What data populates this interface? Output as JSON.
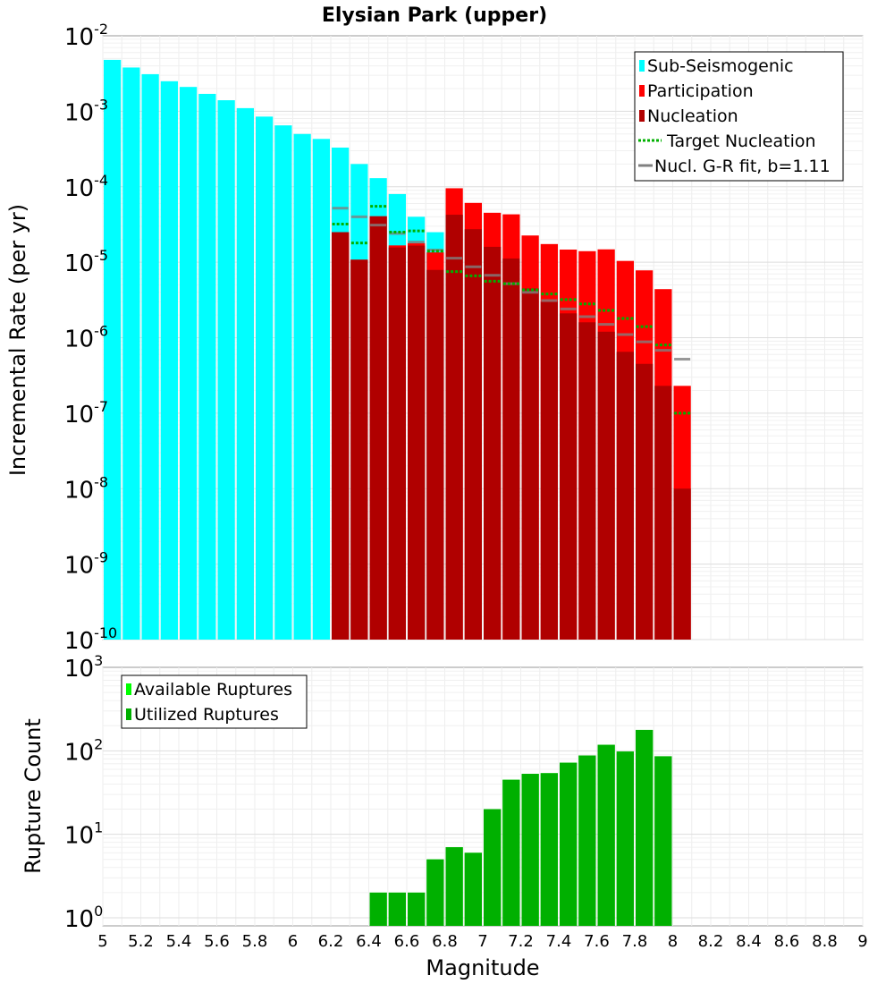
{
  "chart_data": [
    {
      "type": "bar",
      "title": "Elysian Park (upper)",
      "ylabel": "Incremental Rate (per yr)",
      "xlabel": "",
      "y_scale": "log",
      "xlim": [
        5,
        9
      ],
      "ylim": [
        1e-10,
        0.01
      ],
      "bin_width": 0.1,
      "y_tick_exponents": [
        "-2",
        "-3",
        "-4",
        "-5",
        "-6",
        "-7",
        "-8",
        "-9",
        "-10"
      ],
      "y_tick_base": "10",
      "legend": {
        "position": "top-right",
        "entries": [
          "Sub-Seismogenic",
          "Participation",
          "Nucleation",
          "Target Nucleation",
          "Nucl. G-R fit, b=1.11"
        ]
      },
      "colors": {
        "sub_seismogenic": "#00ffff",
        "participation": "#ff0000",
        "nucleation": "#b00000",
        "target_nucleation": "#00b000",
        "gr_fit": "#808080"
      },
      "series": [
        {
          "name": "Sub-Seismogenic",
          "x": [
            5.05,
            5.15,
            5.25,
            5.35,
            5.45,
            5.55,
            5.65,
            5.75,
            5.85,
            5.95,
            6.05,
            6.15,
            6.25,
            6.35,
            6.45,
            6.55,
            6.65,
            6.75
          ],
          "values": [
            0.0048,
            0.0038,
            0.0031,
            0.0025,
            0.0021,
            0.0017,
            0.0014,
            0.0011,
            0.00085,
            0.00065,
            0.0005,
            0.00043,
            0.00033,
            0.0002,
            0.00013,
            8e-05,
            4e-05,
            2.5e-05
          ]
        },
        {
          "name": "Participation",
          "x": [
            6.25,
            6.35,
            6.45,
            6.55,
            6.65,
            6.75,
            6.85,
            6.95,
            7.05,
            7.15,
            7.25,
            7.35,
            7.45,
            7.55,
            7.65,
            7.75,
            7.85,
            7.95,
            8.05
          ],
          "values": [
            2.5e-05,
            1.08e-05,
            4.06e-05,
            1.67e-05,
            1.79e-05,
            1.35e-05,
            9.55e-05,
            6.11e-05,
            4.52e-05,
            4.31e-05,
            2.26e-05,
            1.74e-05,
            1.47e-05,
            1.4e-05,
            1.48e-05,
            1.04e-05,
            7.8e-06,
            4.4e-06,
            2.3e-07
          ]
        },
        {
          "name": "Nucleation",
          "x": [
            6.25,
            6.35,
            6.45,
            6.55,
            6.65,
            6.75,
            6.85,
            6.95,
            7.05,
            7.15,
            7.25,
            7.35,
            7.45,
            7.55,
            7.65,
            7.75,
            7.85,
            7.95,
            8.05
          ],
          "values": [
            2.5e-05,
            1.08e-05,
            4.06e-05,
            1.57e-05,
            1.66e-05,
            7.9e-06,
            4.26e-05,
            2.74e-05,
            1.6e-05,
            1.12e-05,
            4.5e-06,
            3e-06,
            2.1e-06,
            1.6e-06,
            1.2e-06,
            6.5e-07,
            4.5e-07,
            2.3e-07,
            1e-08
          ]
        },
        {
          "name": "Target Nucleation",
          "x": [
            6.25,
            6.35,
            6.45,
            6.55,
            6.65,
            6.75,
            6.85,
            6.95,
            7.05,
            7.15,
            7.25,
            7.35,
            7.45,
            7.55,
            7.65,
            7.75,
            7.85,
            7.95,
            8.05
          ],
          "values": [
            3.2e-05,
            1.8e-05,
            5.5e-05,
            2.5e-05,
            2.6e-05,
            1.4e-05,
            7.5e-06,
            6.6e-06,
            5.6e-06,
            5.2e-06,
            4.3e-06,
            3.8e-06,
            3.2e-06,
            2.8e-06,
            2.3e-06,
            1.8e-06,
            1.4e-06,
            8e-07,
            1e-07
          ]
        },
        {
          "name": "Nucl. G-R fit, b=1.11",
          "x": [
            6.25,
            6.35,
            6.45,
            6.55,
            6.65,
            6.75,
            6.85,
            6.95,
            7.05,
            7.15,
            7.25,
            7.35,
            7.45,
            7.55,
            7.65,
            7.75,
            7.85,
            7.95,
            8.05
          ],
          "values": [
            5.2e-05,
            4e-05,
            3.1e-05,
            2.4e-05,
            1.85e-05,
            1.45e-05,
            1.13e-05,
            8.7e-06,
            6.7e-06,
            5.2e-06,
            4e-06,
            3.1e-06,
            2.4e-06,
            1.9e-06,
            1.5e-06,
            1.1e-06,
            8.8e-07,
            6.8e-07,
            5.2e-07
          ]
        }
      ]
    },
    {
      "type": "bar",
      "title": "",
      "ylabel": "Rupture Count",
      "xlabel": "Magnitude",
      "y_scale": "log",
      "xlim": [
        5,
        9
      ],
      "ylim": [
        0.8,
        1000
      ],
      "bin_width": 0.1,
      "y_tick_exponents": [
        "3",
        "2",
        "1",
        "0"
      ],
      "y_tick_base": "10",
      "x_ticks": [
        "5",
        "5.2",
        "5.4",
        "5.6",
        "5.8",
        "6",
        "6.2",
        "6.4",
        "6.6",
        "6.8",
        "7",
        "7.2",
        "7.4",
        "7.6",
        "7.8",
        "8",
        "8.2",
        "8.4",
        "8.6",
        "8.8",
        "9"
      ],
      "legend": {
        "position": "top-left",
        "entries": [
          "Available Ruptures",
          "Utilized Ruptures"
        ]
      },
      "colors": {
        "available": "#00ff00",
        "utilized": "#00b000"
      },
      "series": [
        {
          "name": "Available Ruptures",
          "x": [
            6.45,
            6.55,
            6.65,
            6.75,
            6.85,
            6.95,
            7.05,
            7.15,
            7.25,
            7.35,
            7.45,
            7.55,
            7.65,
            7.75,
            7.85,
            7.95
          ],
          "values": [
            2,
            2,
            2,
            5,
            7,
            6,
            20,
            45,
            53,
            54,
            72,
            88,
            118,
            98,
            178,
            86
          ]
        },
        {
          "name": "Utilized Ruptures",
          "x": [
            6.45,
            6.55,
            6.65,
            6.75,
            6.85,
            6.95,
            7.05,
            7.15,
            7.25,
            7.35,
            7.45,
            7.55,
            7.65,
            7.75,
            7.85,
            7.95
          ],
          "values": [
            2,
            2,
            2,
            5,
            7,
            6,
            20,
            45,
            53,
            54,
            72,
            88,
            118,
            98,
            178,
            86
          ]
        }
      ]
    }
  ]
}
